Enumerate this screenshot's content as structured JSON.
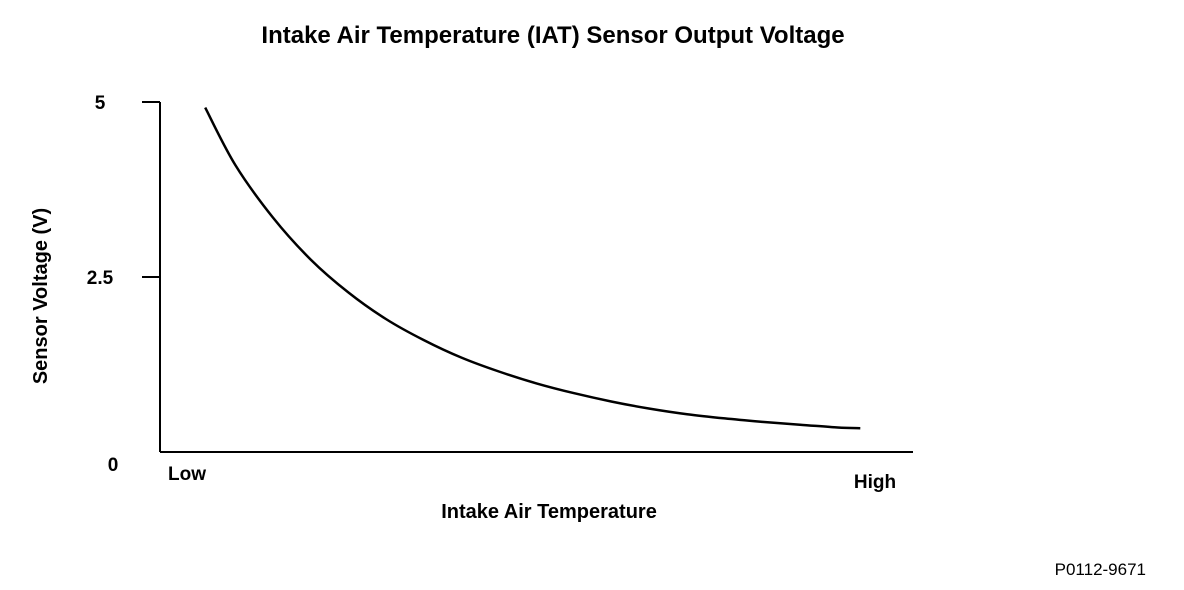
{
  "chart_data": {
    "type": "line",
    "title": "Intake Air Temperature (IAT) Sensor Output Voltage",
    "xlabel": "Intake Air Temperature",
    "ylabel": "Sensor Voltage (V)",
    "x_tick_labels": [
      "Low",
      "High"
    ],
    "y_ticks": [
      {
        "value": 5,
        "label": "5"
      },
      {
        "value": 2.5,
        "label": "2.5"
      },
      {
        "value": 0,
        "label": "0"
      }
    ],
    "ylim": [
      0,
      5
    ],
    "xlim": [
      0,
      1
    ],
    "grid": false,
    "series": [
      {
        "x": [
          0.06,
          0.1,
          0.15,
          0.2,
          0.25,
          0.3,
          0.35,
          0.4,
          0.45,
          0.5,
          0.55,
          0.6,
          0.65,
          0.7,
          0.75,
          0.8,
          0.85,
          0.9,
          0.93
        ],
        "values": [
          4.92,
          4.1,
          3.35,
          2.75,
          2.28,
          1.9,
          1.6,
          1.35,
          1.15,
          0.98,
          0.84,
          0.72,
          0.62,
          0.54,
          0.48,
          0.43,
          0.39,
          0.35,
          0.34
        ]
      }
    ]
  },
  "figure_code": "P0112-9671"
}
